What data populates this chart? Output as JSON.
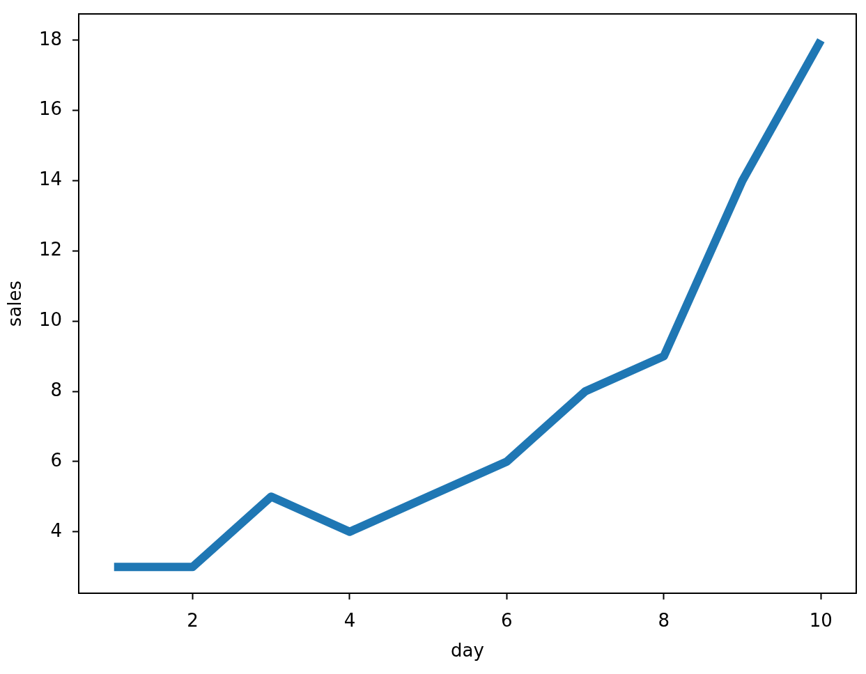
{
  "chart_data": {
    "type": "line",
    "xlabel": "day",
    "ylabel": "sales",
    "x": [
      1,
      2,
      3,
      4,
      5,
      6,
      7,
      8,
      9,
      10
    ],
    "series": [
      {
        "color": "#1f77b4",
        "values": [
          3,
          3,
          5,
          4,
          5,
          6,
          8,
          9,
          14,
          18
        ]
      }
    ],
    "xlim": [
      0.55,
      10.45
    ],
    "xticks": [
      2,
      4,
      6,
      8,
      10
    ],
    "ylim": [
      2.25,
      18.75
    ],
    "yticks": [
      4,
      6,
      8,
      10,
      12,
      14,
      16,
      18
    ],
    "marker": "none",
    "line_style": "solid"
  }
}
